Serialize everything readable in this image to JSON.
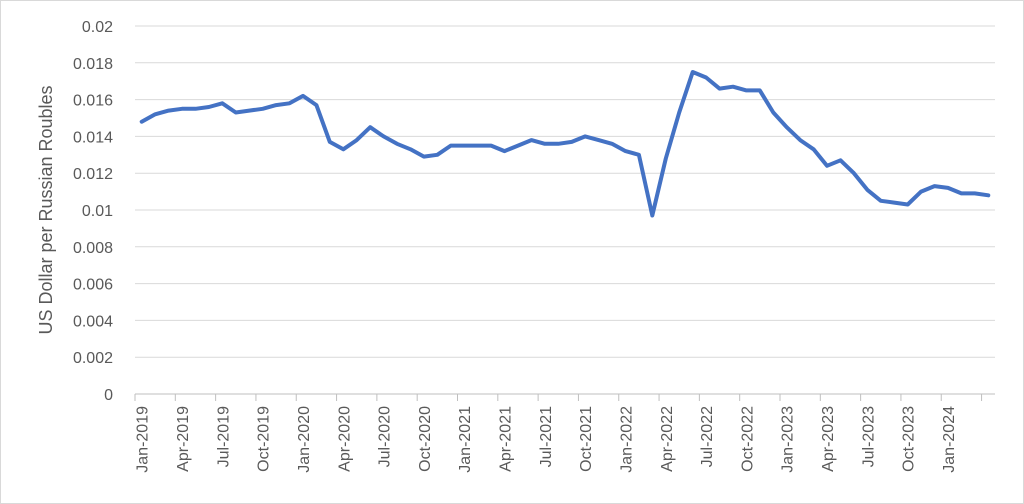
{
  "chart_data": {
    "type": "line",
    "title": "",
    "xlabel": "",
    "ylabel": "US Dollar per Russian Roubles",
    "ylim": [
      0,
      0.02
    ],
    "y_ticks": [
      "0",
      "0.002",
      "0.004",
      "0.006",
      "0.008",
      "0.01",
      "0.012",
      "0.014",
      "0.016",
      "0.018",
      "0.02"
    ],
    "x_tick_labels": [
      "Jan-2019",
      "Apr-2019",
      "Jul-2019",
      "Oct-2019",
      "Jan-2020",
      "Apr-2020",
      "Jul-2020",
      "Oct-2020",
      "Jan-2021",
      "Apr-2021",
      "Jul-2021",
      "Oct-2021",
      "Jan-2022",
      "Apr-2022",
      "Jul-2022",
      "Oct-2022",
      "Jan-2023",
      "Apr-2023",
      "Jul-2023",
      "Oct-2023",
      "Jan-2024"
    ],
    "x_tick_every": 3,
    "grid": true,
    "legend": "none",
    "line_color": "#4472c4",
    "x": [
      "Jan-2019",
      "Feb-2019",
      "Mar-2019",
      "Apr-2019",
      "May-2019",
      "Jun-2019",
      "Jul-2019",
      "Aug-2019",
      "Sep-2019",
      "Oct-2019",
      "Nov-2019",
      "Dec-2019",
      "Jan-2020",
      "Feb-2020",
      "Mar-2020",
      "Apr-2020",
      "May-2020",
      "Jun-2020",
      "Jul-2020",
      "Aug-2020",
      "Sep-2020",
      "Oct-2020",
      "Nov-2020",
      "Dec-2020",
      "Jan-2021",
      "Feb-2021",
      "Mar-2021",
      "Apr-2021",
      "May-2021",
      "Jun-2021",
      "Jul-2021",
      "Aug-2021",
      "Sep-2021",
      "Oct-2021",
      "Nov-2021",
      "Dec-2021",
      "Jan-2022",
      "Feb-2022",
      "Mar-2022",
      "Apr-2022",
      "May-2022",
      "Jun-2022",
      "Jul-2022",
      "Aug-2022",
      "Sep-2022",
      "Oct-2022",
      "Nov-2022",
      "Dec-2022",
      "Jan-2023",
      "Feb-2023",
      "Mar-2023",
      "Apr-2023",
      "May-2023",
      "Jun-2023",
      "Jul-2023",
      "Aug-2023",
      "Sep-2023",
      "Oct-2023",
      "Nov-2023",
      "Dec-2023",
      "Jan-2024",
      "Feb-2024",
      "Mar-2024",
      "Apr-2024"
    ],
    "series": [
      {
        "values": [
          0.0148,
          0.0152,
          0.0154,
          0.0155,
          0.0155,
          0.0156,
          0.0158,
          0.0153,
          0.0154,
          0.0155,
          0.0157,
          0.0158,
          0.0162,
          0.0157,
          0.0137,
          0.0133,
          0.0138,
          0.0145,
          0.014,
          0.0136,
          0.0133,
          0.0129,
          0.013,
          0.0135,
          0.0135,
          0.0135,
          0.0135,
          0.0132,
          0.0135,
          0.0138,
          0.0136,
          0.0136,
          0.0137,
          0.014,
          0.0138,
          0.0136,
          0.0132,
          0.013,
          0.0097,
          0.0128,
          0.0153,
          0.0175,
          0.0172,
          0.0166,
          0.0167,
          0.0165,
          0.0165,
          0.0153,
          0.0145,
          0.0138,
          0.0133,
          0.0124,
          0.0127,
          0.012,
          0.0111,
          0.0105,
          0.0104,
          0.0103,
          0.011,
          0.0113,
          0.0112,
          0.0109,
          0.0109,
          0.0108
        ]
      }
    ]
  }
}
